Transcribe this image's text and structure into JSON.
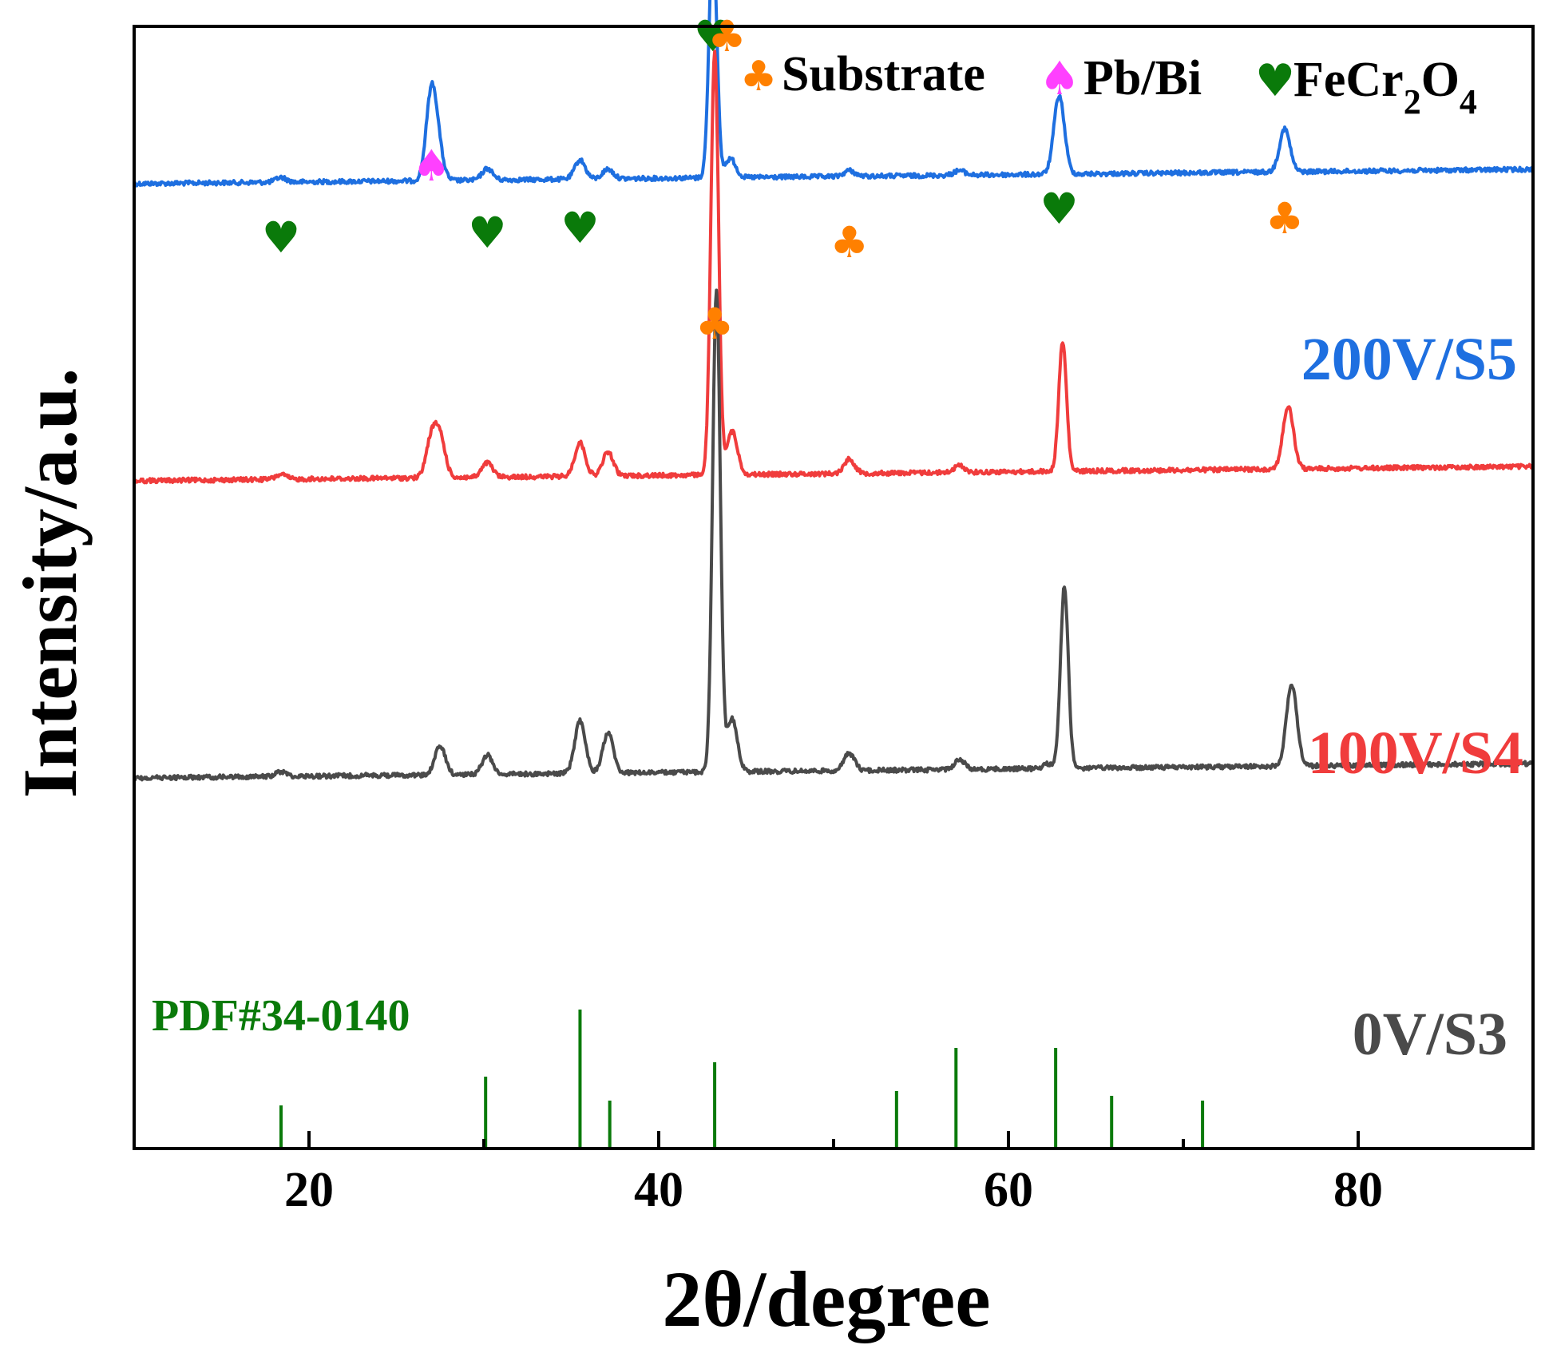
{
  "chart_data": {
    "type": "line",
    "title": "",
    "xlabel": "2θ/degree",
    "ylabel": "Intensity/a.u.",
    "xlim": [
      10,
      90
    ],
    "x_ticks": [
      20,
      40,
      60,
      80
    ],
    "y_ticks_shown": false,
    "grid": false,
    "legend": {
      "placement": "top-right",
      "entries": [
        {
          "symbol": "♣",
          "color": "#ff8000",
          "label": "Substrate"
        },
        {
          "symbol": "♠",
          "color": "#ff40ff",
          "label": "Pb/Bi"
        },
        {
          "symbol": "♥",
          "color": "#0a7a0a",
          "label_main": "FeCr",
          "label_sub1": "2",
          "label_mid": "O",
          "label_sub2": "4"
        }
      ]
    },
    "series": [
      {
        "name": "200V/S5",
        "color": "#1e6fe0",
        "baseline": 1.0,
        "drift": -0.15,
        "peaks": [
          [
            18.4,
            0.05
          ],
          [
            27.0,
            0.9
          ],
          [
            27.4,
            0.25
          ],
          [
            30.2,
            0.12
          ],
          [
            35.5,
            0.2
          ],
          [
            37.1,
            0.1
          ],
          [
            43.1,
            2.55
          ],
          [
            44.1,
            0.2
          ],
          [
            50.9,
            0.06
          ],
          [
            57.2,
            0.05
          ],
          [
            62.9,
            0.82
          ],
          [
            75.8,
            0.45
          ]
        ]
      },
      {
        "name": "100V/S4",
        "color": "#f03c3c",
        "baseline": 4.1,
        "drift": -0.15,
        "peaks": [
          [
            18.4,
            0.05
          ],
          [
            27.0,
            0.4
          ],
          [
            27.5,
            0.4
          ],
          [
            30.2,
            0.15
          ],
          [
            35.5,
            0.35
          ],
          [
            37.1,
            0.25
          ],
          [
            43.2,
            4.4
          ],
          [
            44.2,
            0.45
          ],
          [
            50.9,
            0.15
          ],
          [
            57.2,
            0.07
          ],
          [
            63.1,
            1.35
          ],
          [
            76.0,
            0.65
          ]
        ]
      },
      {
        "name": "0V/S3",
        "color": "#4a4a4a",
        "baseline": 7.2,
        "drift": -0.15,
        "peaks": [
          [
            18.4,
            0.05
          ],
          [
            27.5,
            0.3
          ],
          [
            30.2,
            0.2
          ],
          [
            35.5,
            0.55
          ],
          [
            37.1,
            0.42
          ],
          [
            43.3,
            5.0
          ],
          [
            44.2,
            0.55
          ],
          [
            50.9,
            0.18
          ],
          [
            57.2,
            0.1
          ],
          [
            62.3,
            0.05
          ],
          [
            63.2,
            1.9
          ],
          [
            76.2,
            0.85
          ]
        ]
      }
    ],
    "reference_pattern": {
      "label": "PDF#34-0140",
      "color": "#0a7a0a",
      "lines": [
        [
          18.4,
          0.45
        ],
        [
          30.1,
          0.75
        ],
        [
          35.5,
          1.45
        ],
        [
          37.2,
          0.5
        ],
        [
          43.2,
          0.9
        ],
        [
          53.6,
          0.6
        ],
        [
          57.0,
          1.05
        ],
        [
          62.7,
          1.05
        ],
        [
          65.9,
          0.55
        ],
        [
          71.1,
          0.5
        ]
      ]
    },
    "peak_markers": [
      {
        "series": "200V/S5",
        "symbol": "♥",
        "color": "#0a7a0a",
        "x": 18.4,
        "y": 1.55
      },
      {
        "series": "200V/S5",
        "symbol": "♠",
        "color": "#ff40ff",
        "x": 27.0,
        "y": 0.8
      },
      {
        "series": "200V/S5",
        "symbol": "♥",
        "color": "#0a7a0a",
        "x": 30.2,
        "y": 1.5
      },
      {
        "series": "200V/S5",
        "symbol": "♥",
        "color": "#0a7a0a",
        "x": 35.5,
        "y": 1.45
      },
      {
        "series": "200V/S5",
        "symbol": "♥",
        "color": "#0a7a0a",
        "x": 43.1,
        "y": -0.55
      },
      {
        "series": "200V/S5",
        "symbol": "♣",
        "color": "#ff8000",
        "x": 43.9,
        "y": -0.55
      },
      {
        "series": "200V/S5",
        "symbol": "♣",
        "color": "#ff8000",
        "x": 50.9,
        "y": 1.6
      },
      {
        "series": "200V/S5",
        "symbol": "♥",
        "color": "#0a7a0a",
        "x": 62.9,
        "y": 1.25
      },
      {
        "series": "200V/S5",
        "symbol": "♣",
        "color": "#ff8000",
        "x": 75.8,
        "y": 1.35
      },
      {
        "series": "100V/S4",
        "symbol": "♣",
        "color": "#ff8000",
        "x": 43.2,
        "y": 2.45
      }
    ]
  }
}
